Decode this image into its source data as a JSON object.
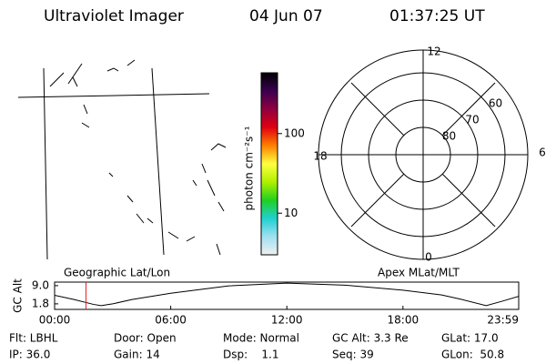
{
  "header": {
    "title": "Ultraviolet Imager",
    "date": "04 Jun 07",
    "time": "01:37:25 UT"
  },
  "colorbar": {
    "label": "photon cm⁻²s⁻¹",
    "log_scale": true,
    "lim": [
      3,
      580
    ],
    "ticks": [
      10,
      100
    ]
  },
  "polar": {
    "hours": [
      12,
      6,
      0,
      18
    ],
    "rings": [
      80,
      70,
      60
    ]
  },
  "orbit": {
    "ylabel": "GC Alt",
    "left_label": "Geographic Lat/Lon",
    "right_label": "Apex MLat/MLT",
    "ylim": [
      -0.4,
      10.4
    ],
    "yticks": [
      {
        "value": 9,
        "label": "9.0"
      },
      1.8
    ],
    "xlim": [
      0,
      23.98
    ],
    "xticks": [
      {
        "value": 0,
        "label": "00:00"
      },
      {
        "value": 6,
        "label": "06:00"
      },
      {
        "value": 12,
        "label": "12:00"
      },
      {
        "value": 18,
        "label": "18:00"
      },
      {
        "value": 23.98,
        "label": "23:59"
      }
    ],
    "x": [
      0,
      1,
      2,
      2.4,
      3,
      4,
      6,
      9,
      12,
      15,
      18,
      20,
      21,
      22.3,
      23.2,
      23.98
    ],
    "values": [
      5.2,
      3.5,
      1.6,
      1.1,
      1.8,
      3.5,
      6.0,
      8.9,
      10.0,
      9.2,
      7.2,
      5.3,
      3.6,
      1.1,
      3.0,
      4.8
    ],
    "marker_hour": 1.62,
    "marker_color": "#e02020"
  },
  "footer": [
    [
      "Flt: LBHL",
      "Door: Open",
      "Mode: Normal",
      "GC Alt: 3.3 Re",
      "GLat: 17.0"
    ],
    [
      "IP: 36.0",
      "Gain: 14",
      "Dsp:    1.1",
      "Seq: 39",
      "GLon:  50.8"
    ]
  ]
}
